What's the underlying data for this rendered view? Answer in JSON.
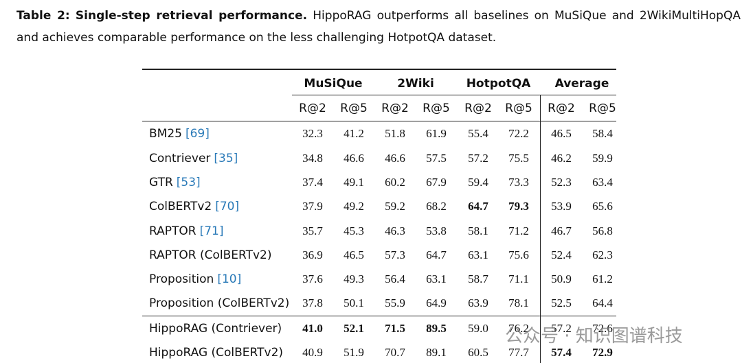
{
  "caption": {
    "label": "Table 2:",
    "title": "Single-step retrieval performance.",
    "text": "HippoRAG outperforms all baselines on MuSiQue and 2WikiMultiHopQA and achieves comparable performance on the less challenging HotpotQA dataset."
  },
  "table": {
    "groups": [
      "MuSiQue",
      "2Wiki",
      "HotpotQA",
      "Average"
    ],
    "subheaders": [
      "R@2",
      "R@5",
      "R@2",
      "R@5",
      "R@2",
      "R@5",
      "R@2",
      "R@5"
    ],
    "rows": [
      {
        "method": "BM25",
        "cite": "[69]",
        "values": [
          "32.3",
          "41.2",
          "51.8",
          "61.9",
          "55.4",
          "72.2",
          "46.5",
          "58.4"
        ],
        "bold": [
          false,
          false,
          false,
          false,
          false,
          false,
          false,
          false
        ]
      },
      {
        "method": "Contriever",
        "cite": "[35]",
        "values": [
          "34.8",
          "46.6",
          "46.6",
          "57.5",
          "57.2",
          "75.5",
          "46.2",
          "59.9"
        ],
        "bold": [
          false,
          false,
          false,
          false,
          false,
          false,
          false,
          false
        ]
      },
      {
        "method": "GTR",
        "cite": "[53]",
        "values": [
          "37.4",
          "49.1",
          "60.2",
          "67.9",
          "59.4",
          "73.3",
          "52.3",
          "63.4"
        ],
        "bold": [
          false,
          false,
          false,
          false,
          false,
          false,
          false,
          false
        ]
      },
      {
        "method": "ColBERTv2",
        "cite": "[70]",
        "values": [
          "37.9",
          "49.2",
          "59.2",
          "68.2",
          "64.7",
          "79.3",
          "53.9",
          "65.6"
        ],
        "bold": [
          false,
          false,
          false,
          false,
          true,
          true,
          false,
          false
        ]
      },
      {
        "method": "RAPTOR",
        "cite": "[71]",
        "values": [
          "35.7",
          "45.3",
          "46.3",
          "53.8",
          "58.1",
          "71.2",
          "46.7",
          "56.8"
        ],
        "bold": [
          false,
          false,
          false,
          false,
          false,
          false,
          false,
          false
        ]
      },
      {
        "method": "RAPTOR (ColBERTv2)",
        "values": [
          "36.9",
          "46.5",
          "57.3",
          "64.7",
          "63.1",
          "75.6",
          "52.4",
          "62.3"
        ],
        "bold": [
          false,
          false,
          false,
          false,
          false,
          false,
          false,
          false
        ]
      },
      {
        "method": "Proposition",
        "cite": "[10]",
        "values": [
          "37.6",
          "49.3",
          "56.4",
          "63.1",
          "58.7",
          "71.1",
          "50.9",
          "61.2"
        ],
        "bold": [
          false,
          false,
          false,
          false,
          false,
          false,
          false,
          false
        ]
      },
      {
        "method": "Proposition (ColBERTv2)",
        "values": [
          "37.8",
          "50.1",
          "55.9",
          "64.9",
          "63.9",
          "78.1",
          "52.5",
          "64.4"
        ],
        "bold": [
          false,
          false,
          false,
          false,
          false,
          false,
          false,
          false
        ]
      },
      {
        "method": "HippoRAG (Contriever)",
        "values": [
          "41.0",
          "52.1",
          "71.5",
          "89.5",
          "59.0",
          "76.2",
          "57.2",
          "72.6"
        ],
        "bold": [
          true,
          true,
          true,
          true,
          false,
          false,
          false,
          false
        ]
      },
      {
        "method": "HippoRAG (ColBERTv2)",
        "values": [
          "40.9",
          "51.9",
          "70.7",
          "89.1",
          "60.5",
          "77.7",
          "57.4",
          "72.9"
        ],
        "bold": [
          false,
          false,
          false,
          false,
          false,
          false,
          true,
          true
        ]
      }
    ]
  },
  "watermark": "公众号 · 知识图谱科技"
}
